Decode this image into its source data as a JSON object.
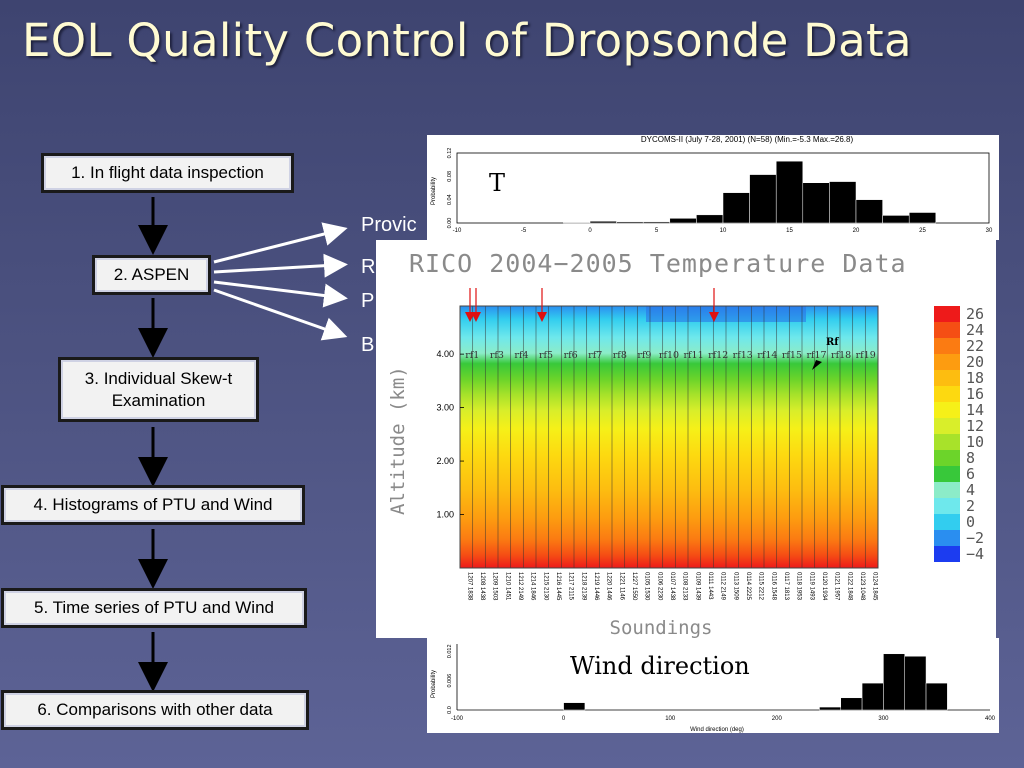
{
  "slide": {
    "title": "EOL Quality Control of Dropsonde Data",
    "steps": [
      "1. In flight data inspection",
      "2. ASPEN",
      "3. Individual Skew-t Examination",
      "4. Histograms of PTU and Wind",
      "5. Time series of PTU and Wind",
      "6. Comparisons with other data"
    ],
    "aspen_outputs": [
      "Provic",
      "R",
      "P",
      "B"
    ]
  },
  "hist_top": {
    "title": "DYCOMS-II (July 7-28, 2001) (N=58) (Min.=-5.3 Max.=26.8)",
    "variable_label": "T",
    "ylabel": "Probability",
    "y_ticks": [
      "0.12",
      "0.08",
      "0.04",
      "0.00"
    ],
    "x_ticks": [
      "-10",
      "-5",
      "0",
      "5",
      "10",
      "15",
      "20",
      "25",
      "30"
    ],
    "bins_x": [
      -2,
      0,
      2,
      4,
      6,
      8,
      10,
      12,
      14,
      16,
      18,
      20,
      22,
      24
    ],
    "values": [
      0.001,
      0.003,
      0.002,
      0.002,
      0.008,
      0.014,
      0.052,
      0.083,
      0.106,
      0.069,
      0.071,
      0.04,
      0.013,
      0.018
    ]
  },
  "hist_bottom": {
    "variable_label": "Wind direction",
    "ylabel": "Probability",
    "xlabel": "Wind direction (deg)",
    "y_ticks": [
      "0.012",
      "0.006",
      "0.0"
    ],
    "x_ticks": [
      "-100",
      "0",
      "100",
      "200",
      "300",
      "400"
    ],
    "bins_x": [
      0,
      240,
      260,
      280,
      300,
      320,
      340
    ],
    "values": [
      0.0015,
      0.0006,
      0.0025,
      0.0055,
      0.0115,
      0.011,
      0.0055
    ]
  },
  "rico": {
    "title": "RICO 2004−2005 Temperature Data",
    "ylabel": "Altitude (km)",
    "xlabel": "Soundings",
    "y_ticks": [
      "4.00",
      "3.00",
      "2.00",
      "1.00"
    ],
    "flights": [
      "rf1",
      "rf3",
      "rf4",
      "rf5",
      "rf6",
      "rf7",
      "rf8",
      "rf9",
      "rf10",
      "rf11",
      "rf12",
      "rf13",
      "rf14",
      "rf15",
      "rf17",
      "rf18",
      "rf19"
    ],
    "annotation": "Rf",
    "colorbar_labels": [
      "26",
      "24",
      "22",
      "20",
      "18",
      "16",
      "14",
      "12",
      "10",
      "8",
      "6",
      "4",
      "2",
      "0",
      "−2",
      "−4"
    ],
    "colorbar_colors": [
      "#ee1a1a",
      "#f54e14",
      "#fb7b12",
      "#fd9c10",
      "#fdbd10",
      "#fdd910",
      "#f6f018",
      "#d9ee2a",
      "#a8e22a",
      "#6cd42a",
      "#38c83a",
      "#8cecc8",
      "#6ee8ec",
      "#32cdef",
      "#2a8ef0",
      "#1c3cf0"
    ],
    "sounding_labels": [
      "1207 1838",
      "1208 1438",
      "1209 1503",
      "1210 1451",
      "1212 2149",
      "1214 1846",
      "1215 2130",
      "1216 1445",
      "1217 2115",
      "1218 2139",
      "1219 1446",
      "1220 1446",
      "1221 1146",
      "1227 1550",
      "0105 1530",
      "0106 2230",
      "0107 1438",
      "0108 2133",
      "0109 1439",
      "0111 1443",
      "0112 2149",
      "0113 1509",
      "0114 2225",
      "0115 2212",
      "0116 1548",
      "0117 1813",
      "0118 1953",
      "0119 1493",
      "0120 1934",
      "0121 1957",
      "0122 1848",
      "0123 1048",
      "0124 1845"
    ]
  }
}
